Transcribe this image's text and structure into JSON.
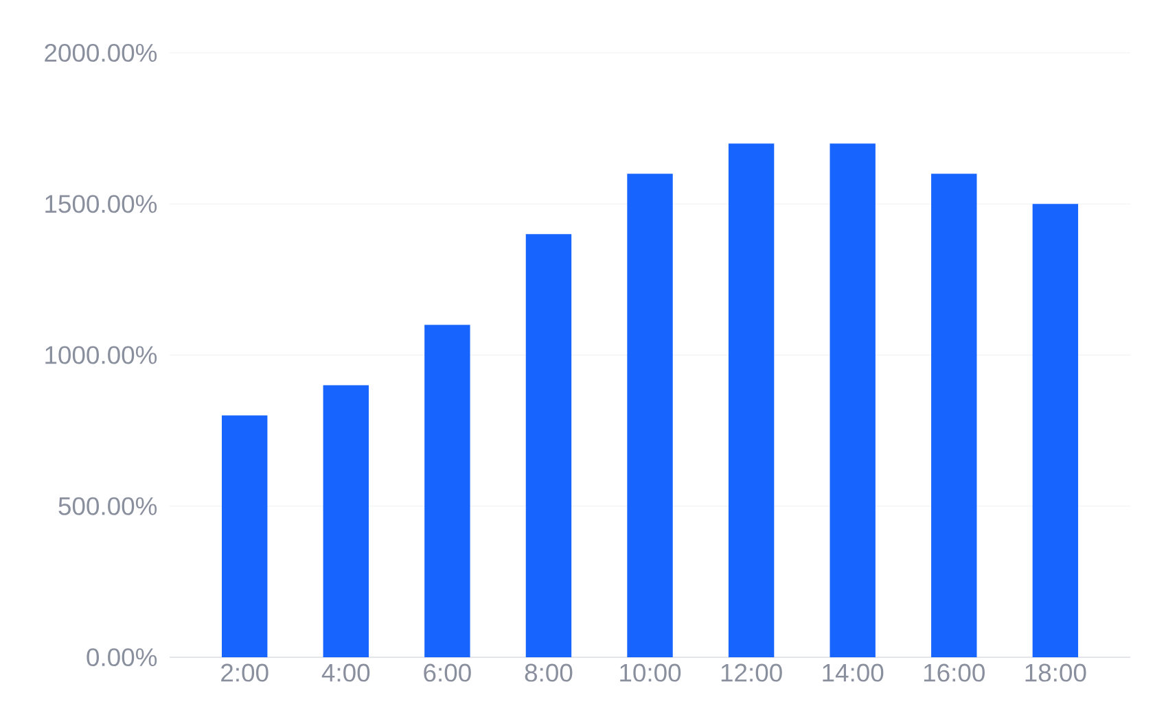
{
  "chart_data": {
    "type": "bar",
    "categories": [
      "2:00",
      "4:00",
      "6:00",
      "8:00",
      "10:00",
      "12:00",
      "14:00",
      "16:00",
      "18:00"
    ],
    "values": [
      800,
      900,
      1100,
      1400,
      1600,
      1700,
      1700,
      1600,
      1500
    ],
    "color": "#1764ff",
    "ylim": [
      0,
      2000
    ],
    "yticks": [
      {
        "value": 0,
        "label": "0.00%"
      },
      {
        "value": 500,
        "label": "500.00%"
      },
      {
        "value": 1000,
        "label": "1000.00%"
      },
      {
        "value": 1500,
        "label": "1500.00%"
      },
      {
        "value": 2000,
        "label": "2000.00%"
      }
    ],
    "grid": "y"
  }
}
